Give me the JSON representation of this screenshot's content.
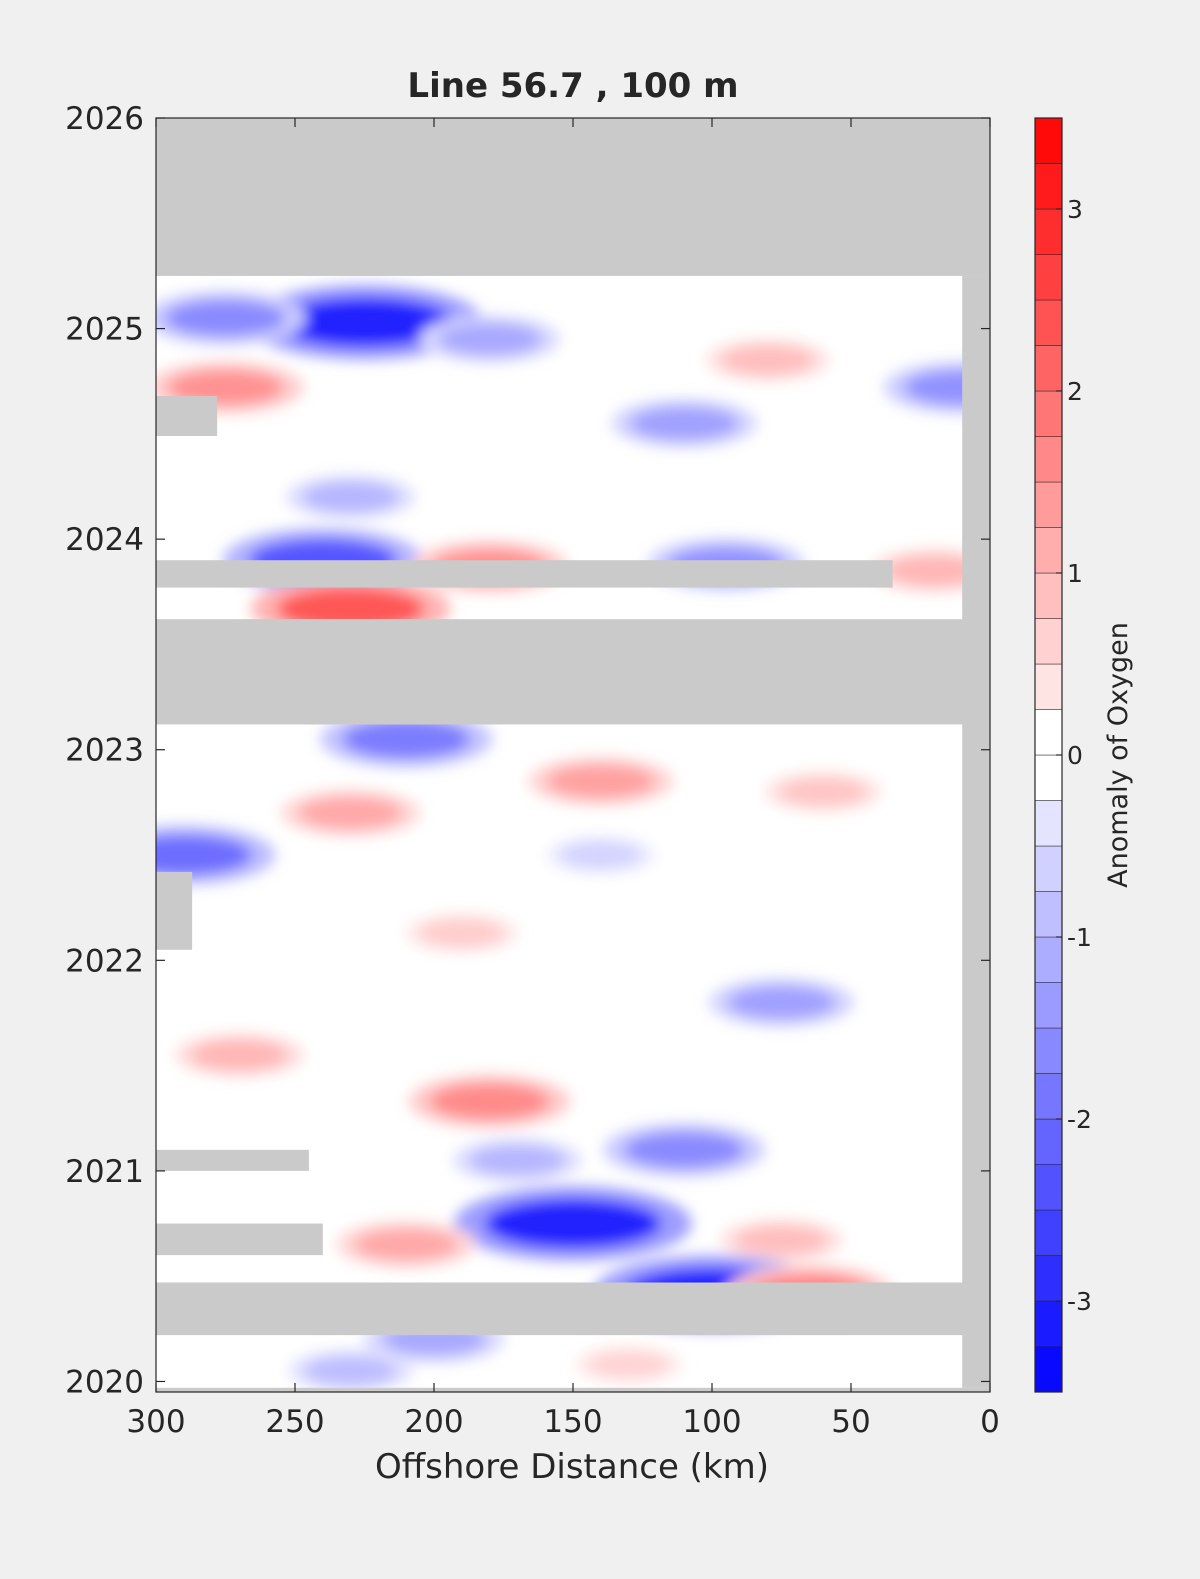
{
  "chart_data": {
    "type": "heatmap",
    "title": "Line 56.7 , 100 m",
    "xlabel": "Offshore Distance (km)",
    "ylabel": "",
    "x_reversed": true,
    "xlim": [
      300,
      0
    ],
    "ylim": [
      2019.95,
      2026
    ],
    "x_ticks": [
      "300",
      "250",
      "200",
      "150",
      "100",
      "50",
      "0"
    ],
    "y_ticks": [
      "2020",
      "2021",
      "2022",
      "2023",
      "2024",
      "2025",
      "2026"
    ],
    "colorbar": {
      "label": "Anomaly of Oxygen",
      "range": [
        -3.5,
        3.5
      ],
      "step": 0.25,
      "ticks": [
        "3",
        "2",
        "1",
        "0",
        "-1",
        "-2",
        "-3"
      ]
    },
    "colors": {
      "background": "#f0f0f0",
      "no_data": "#cacaca",
      "negative": "#0000ff",
      "positive": "#ff0000",
      "neutral": "#ffffff"
    },
    "no_data_regions": [
      {
        "x": [
          300,
          0
        ],
        "y": [
          2025.25,
          2026
        ]
      },
      {
        "x": [
          300,
          0
        ],
        "y": [
          2023.12,
          2023.62
        ]
      },
      {
        "x": [
          300,
          35
        ],
        "y": [
          2023.77,
          2023.9
        ]
      },
      {
        "x": [
          300,
          0
        ],
        "y": [
          2020.22,
          2020.47
        ]
      },
      {
        "x": [
          10,
          0
        ],
        "y": [
          2019.97,
          2025.25
        ]
      },
      {
        "x": [
          300,
          0
        ],
        "y": [
          2019.95,
          2019.97
        ]
      },
      {
        "x": [
          300,
          278
        ],
        "y": [
          2024.49,
          2024.68
        ]
      },
      {
        "x": [
          300,
          287
        ],
        "y": [
          2022.05,
          2022.42
        ]
      },
      {
        "x": [
          300,
          245
        ],
        "y": [
          2021.0,
          2021.1
        ]
      },
      {
        "x": [
          300,
          240
        ],
        "y": [
          2020.6,
          2020.75
        ]
      }
    ],
    "anomaly_features": [
      {
        "x": 225,
        "y": 2025.03,
        "value": -3.0
      },
      {
        "x": 275,
        "y": 2025.05,
        "value": -1.6
      },
      {
        "x": 180,
        "y": 2024.95,
        "value": -1.2
      },
      {
        "x": 275,
        "y": 2024.72,
        "value": 1.5
      },
      {
        "x": 10,
        "y": 2024.72,
        "value": -1.5
      },
      {
        "x": 80,
        "y": 2024.85,
        "value": 0.9
      },
      {
        "x": 110,
        "y": 2024.55,
        "value": -1.3
      },
      {
        "x": 230,
        "y": 2024.2,
        "value": -1.0
      },
      {
        "x": 240,
        "y": 2023.9,
        "value": -2.3
      },
      {
        "x": 180,
        "y": 2023.87,
        "value": 1.5
      },
      {
        "x": 95,
        "y": 2023.88,
        "value": -1.5
      },
      {
        "x": 230,
        "y": 2023.67,
        "value": 2.3
      },
      {
        "x": 20,
        "y": 2023.85,
        "value": 1.0
      },
      {
        "x": 210,
        "y": 2023.05,
        "value": -1.8
      },
      {
        "x": 140,
        "y": 2022.85,
        "value": 1.3
      },
      {
        "x": 60,
        "y": 2022.8,
        "value": 0.8
      },
      {
        "x": 230,
        "y": 2022.7,
        "value": 1.2
      },
      {
        "x": 290,
        "y": 2022.5,
        "value": -2.0
      },
      {
        "x": 140,
        "y": 2022.5,
        "value": -0.6
      },
      {
        "x": 190,
        "y": 2022.13,
        "value": 0.7
      },
      {
        "x": 75,
        "y": 2021.8,
        "value": -1.3
      },
      {
        "x": 270,
        "y": 2021.55,
        "value": 1.0
      },
      {
        "x": 180,
        "y": 2021.33,
        "value": 1.6
      },
      {
        "x": 110,
        "y": 2021.1,
        "value": -1.6
      },
      {
        "x": 170,
        "y": 2021.05,
        "value": -1.0
      },
      {
        "x": 150,
        "y": 2020.75,
        "value": -3.0
      },
      {
        "x": 75,
        "y": 2020.67,
        "value": 0.9
      },
      {
        "x": 210,
        "y": 2020.65,
        "value": 1.2
      },
      {
        "x": 100,
        "y": 2020.42,
        "value": -3.0
      },
      {
        "x": 65,
        "y": 2020.42,
        "value": 1.7
      },
      {
        "x": 200,
        "y": 2020.2,
        "value": -1.2
      },
      {
        "x": 230,
        "y": 2020.05,
        "value": -0.9
      },
      {
        "x": 130,
        "y": 2020.08,
        "value": 0.6
      }
    ]
  }
}
